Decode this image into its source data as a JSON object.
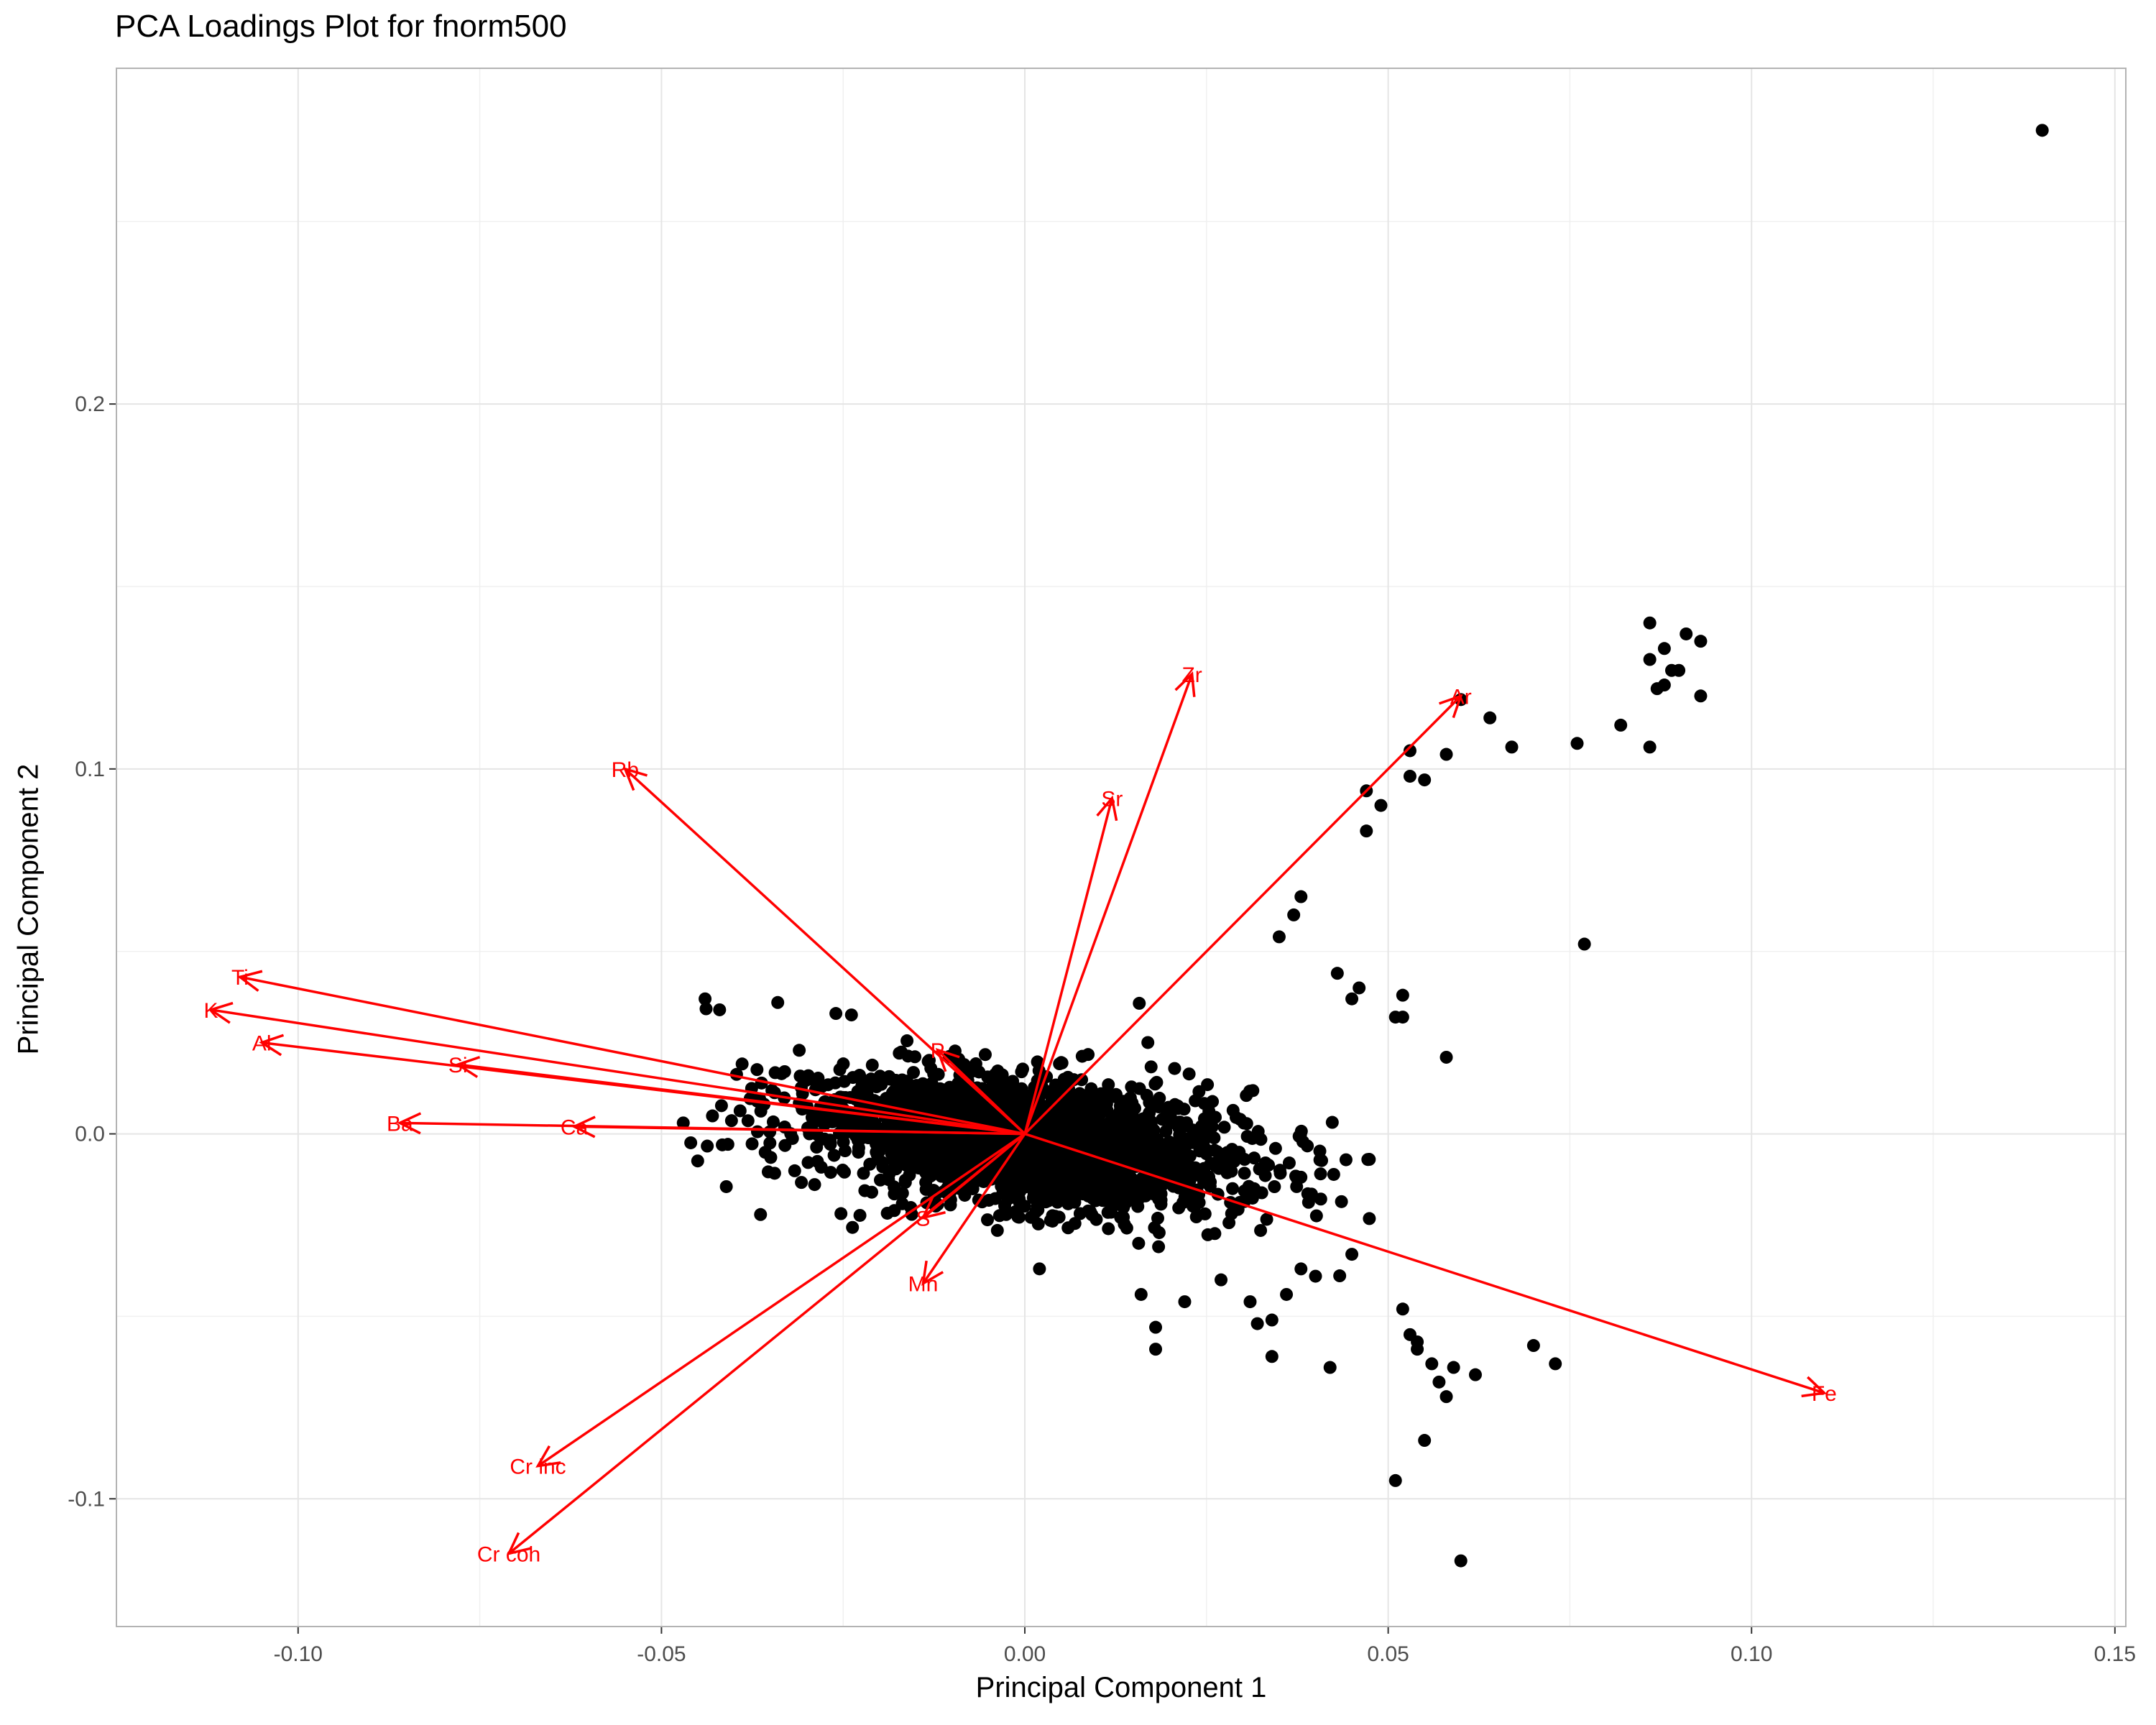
{
  "chart_data": {
    "type": "scatter",
    "title": "PCA Loadings Plot for fnorm500",
    "xlabel": "Principal Component 1",
    "ylabel": "Principal Component 2",
    "xlim": [
      -0.125,
      0.1515
    ],
    "ylim": [
      -0.135,
      0.292
    ],
    "x_ticks": [
      -0.1,
      -0.05,
      0.0,
      0.05,
      0.1,
      0.15
    ],
    "x_tick_labels": [
      "-0.10",
      "-0.05",
      "0.00",
      "0.05",
      "0.10",
      "0.15"
    ],
    "y_ticks": [
      -0.1,
      0.0,
      0.1,
      0.2
    ],
    "y_tick_labels": [
      "-0.1",
      "0.0",
      "0.1",
      "0.2"
    ],
    "grid": true,
    "colors": {
      "points": "#000000",
      "arrows": "#ff0000",
      "grid": "#e5e5e5",
      "panel_border": "#b3b3b3"
    },
    "loadings": [
      {
        "label": "Zr",
        "x": 0.023,
        "y": 0.126
      },
      {
        "label": "Ar",
        "x": 0.06,
        "y": 0.12
      },
      {
        "label": "Rb",
        "x": -0.055,
        "y": 0.1
      },
      {
        "label": "Sr",
        "x": 0.012,
        "y": 0.092
      },
      {
        "label": "Ti",
        "x": -0.108,
        "y": 0.043
      },
      {
        "label": "K",
        "x": -0.112,
        "y": 0.034
      },
      {
        "label": "Al",
        "x": -0.105,
        "y": 0.025
      },
      {
        "label": "Si",
        "x": -0.078,
        "y": 0.019
      },
      {
        "label": "P",
        "x": -0.012,
        "y": 0.023
      },
      {
        "label": "Ba",
        "x": -0.086,
        "y": 0.003
      },
      {
        "label": "Ca",
        "x": -0.062,
        "y": 0.002
      },
      {
        "label": "S",
        "x": -0.014,
        "y": -0.023
      },
      {
        "label": "Mn",
        "x": -0.014,
        "y": -0.041
      },
      {
        "label": "Fe",
        "x": 0.11,
        "y": -0.071
      },
      {
        "label": "Cr inc",
        "x": -0.067,
        "y": -0.091
      },
      {
        "label": "Cr coh",
        "x": -0.071,
        "y": -0.115
      }
    ],
    "outlier_points": [
      {
        "x": 0.14,
        "y": 0.275
      },
      {
        "x": 0.086,
        "y": 0.14
      },
      {
        "x": 0.091,
        "y": 0.137
      },
      {
        "x": 0.093,
        "y": 0.135
      },
      {
        "x": 0.088,
        "y": 0.133
      },
      {
        "x": 0.086,
        "y": 0.13
      },
      {
        "x": 0.089,
        "y": 0.127
      },
      {
        "x": 0.09,
        "y": 0.127
      },
      {
        "x": 0.088,
        "y": 0.123
      },
      {
        "x": 0.087,
        "y": 0.122
      },
      {
        "x": 0.093,
        "y": 0.12
      },
      {
        "x": 0.06,
        "y": 0.119
      },
      {
        "x": 0.064,
        "y": 0.114
      },
      {
        "x": 0.082,
        "y": 0.112
      },
      {
        "x": 0.076,
        "y": 0.107
      },
      {
        "x": 0.086,
        "y": 0.106
      },
      {
        "x": 0.067,
        "y": 0.106
      },
      {
        "x": 0.053,
        "y": 0.105
      },
      {
        "x": 0.058,
        "y": 0.104
      },
      {
        "x": 0.053,
        "y": 0.098
      },
      {
        "x": 0.055,
        "y": 0.097
      },
      {
        "x": 0.047,
        "y": 0.094
      },
      {
        "x": 0.049,
        "y": 0.09
      },
      {
        "x": 0.047,
        "y": 0.083
      },
      {
        "x": 0.077,
        "y": 0.052
      },
      {
        "x": 0.058,
        "y": 0.021
      },
      {
        "x": 0.052,
        "y": 0.038
      },
      {
        "x": 0.051,
        "y": 0.032
      },
      {
        "x": 0.052,
        "y": 0.032
      },
      {
        "x": 0.046,
        "y": 0.04
      },
      {
        "x": 0.045,
        "y": 0.037
      },
      {
        "x": 0.043,
        "y": 0.044
      },
      {
        "x": 0.038,
        "y": 0.065
      },
      {
        "x": 0.037,
        "y": 0.06
      },
      {
        "x": 0.035,
        "y": 0.054
      },
      {
        "x": 0.06,
        "y": -0.117
      },
      {
        "x": 0.051,
        "y": -0.095
      },
      {
        "x": 0.055,
        "y": -0.084
      },
      {
        "x": 0.058,
        "y": -0.072
      },
      {
        "x": 0.057,
        "y": -0.068
      },
      {
        "x": 0.062,
        "y": -0.066
      },
      {
        "x": 0.059,
        "y": -0.064
      },
      {
        "x": 0.056,
        "y": -0.063
      },
      {
        "x": 0.054,
        "y": -0.059
      },
      {
        "x": 0.054,
        "y": -0.057
      },
      {
        "x": 0.053,
        "y": -0.055
      },
      {
        "x": 0.052,
        "y": -0.048
      },
      {
        "x": 0.07,
        "y": -0.058
      },
      {
        "x": 0.073,
        "y": -0.063
      },
      {
        "x": 0.042,
        "y": -0.064
      },
      {
        "x": 0.034,
        "y": -0.061
      },
      {
        "x": 0.036,
        "y": -0.044
      },
      {
        "x": 0.045,
        "y": -0.033
      },
      {
        "x": 0.04,
        "y": -0.039
      },
      {
        "x": 0.031,
        "y": -0.046
      },
      {
        "x": 0.032,
        "y": -0.052
      },
      {
        "x": 0.034,
        "y": -0.051
      },
      {
        "x": 0.038,
        "y": -0.037
      },
      {
        "x": 0.018,
        "y": -0.059
      },
      {
        "x": 0.018,
        "y": -0.053
      },
      {
        "x": 0.016,
        "y": -0.044
      },
      {
        "x": 0.022,
        "y": -0.046
      },
      {
        "x": 0.027,
        "y": -0.04
      },
      {
        "x": -0.047,
        "y": 0.003
      },
      {
        "x": -0.044,
        "y": 0.037
      },
      {
        "x": -0.042,
        "y": 0.034
      },
      {
        "x": -0.034,
        "y": 0.036
      },
      {
        "x": -0.026,
        "y": 0.033
      }
    ],
    "cluster_centroid": {
      "x": 0.0,
      "y": -0.002
    },
    "cluster_note": "dense cluster of observations concentrated around the origin, spanning roughly x -0.045 to 0.045, y -0.045 to 0.065"
  }
}
